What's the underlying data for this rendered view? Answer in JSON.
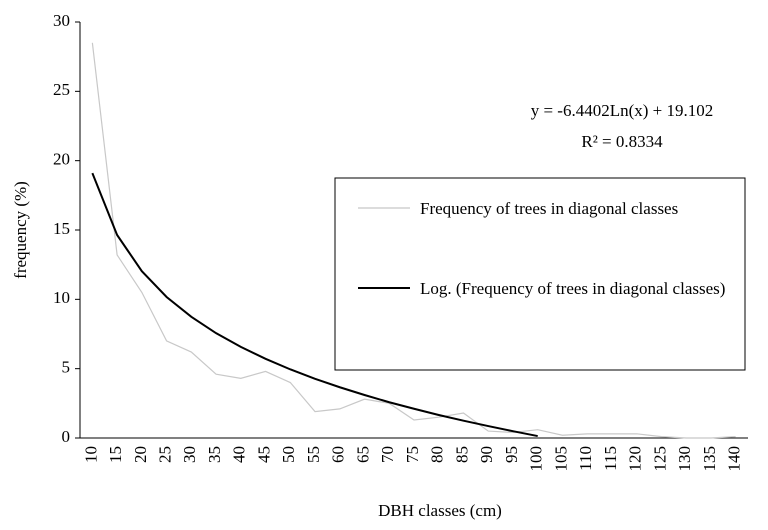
{
  "chart_data": {
    "type": "line",
    "x_label": "DBH classes (cm)",
    "y_label": "frequency (%)",
    "categories": [
      "10",
      "15",
      "20",
      "25",
      "30",
      "35",
      "40",
      "45",
      "50",
      "55",
      "60",
      "65",
      "70",
      "75",
      "80",
      "85",
      "90",
      "95",
      "100",
      "105",
      "110",
      "115",
      "120",
      "125",
      "130",
      "135",
      "140"
    ],
    "series": [
      {
        "name": "Frequency of trees in diagonal classes",
        "color": "#c8c8c8",
        "values": [
          28.5,
          13.2,
          10.5,
          7.0,
          6.2,
          4.6,
          4.3,
          4.8,
          4.0,
          1.9,
          2.1,
          2.8,
          2.5,
          1.3,
          1.5,
          1.8,
          0.5,
          0.4,
          0.6,
          0.2,
          0.3,
          0.3,
          0.3,
          0.1,
          0,
          0,
          0.1
        ]
      },
      {
        "name": "Log. (Frequency of trees in diagonal classes)",
        "color": "#000000",
        "values": [
          19.1,
          14.64,
          12.03,
          10.17,
          8.74,
          7.56,
          6.57,
          5.71,
          4.95,
          4.27,
          3.66,
          3.1,
          2.58,
          2.11,
          1.66,
          1.25,
          0.86,
          0.49,
          0.14,
          null,
          null,
          null,
          null,
          null,
          null,
          null,
          null
        ]
      }
    ],
    "annotations": [
      "y = -6.4402Ln(x) + 19.102",
      "R² = 0.8334"
    ],
    "ylim": [
      0,
      30
    ],
    "yticks": [
      0,
      5,
      10,
      15,
      20,
      25,
      30
    ],
    "grid": false
  }
}
